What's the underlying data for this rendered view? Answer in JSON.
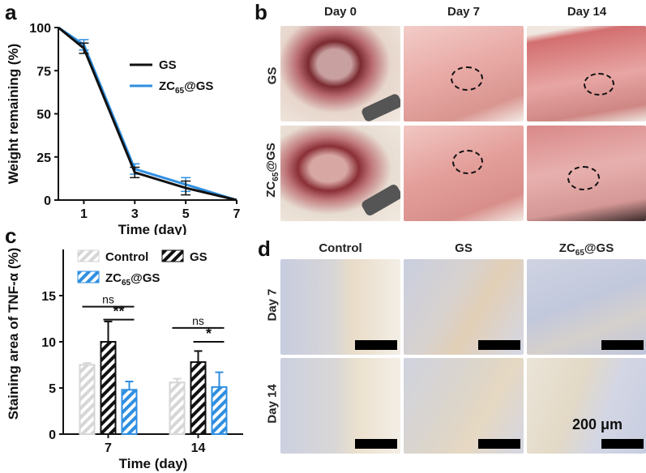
{
  "panels": {
    "a": {
      "letter": "a"
    },
    "b": {
      "letter": "b",
      "columns": [
        "Day 0",
        "Day 7",
        "Day 14"
      ],
      "rows": [
        "GS",
        "ZC",
        "65",
        "@GS"
      ]
    },
    "c": {
      "letter": "c"
    },
    "d": {
      "letter": "d",
      "columns": [
        "Control",
        "GS",
        "ZC",
        "65",
        "@GS"
      ],
      "rows": [
        "Day 7",
        "Day 14"
      ],
      "scalebar_label": "200 μm"
    }
  },
  "chart_data": [
    {
      "type": "line",
      "panel": "a",
      "title": "",
      "xlabel": "Time (day)",
      "ylabel": "Weight remaining (%)",
      "xlim": [
        0,
        7
      ],
      "ylim": [
        0,
        100
      ],
      "xticks": [
        1,
        3,
        5,
        7
      ],
      "yticks": [
        0,
        25,
        50,
        75,
        100
      ],
      "legend": "top-right",
      "series": [
        {
          "name": "GS",
          "color": "#111111",
          "x": [
            0,
            1,
            3,
            5,
            7
          ],
          "y": [
            100,
            88,
            16,
            7,
            0
          ],
          "err": [
            0,
            3,
            3,
            4,
            0
          ]
        },
        {
          "name": "ZC65@GS",
          "name_parts": [
            "ZC",
            "65",
            "@GS"
          ],
          "color": "#2f8fe0",
          "x": [
            0,
            1,
            3,
            5,
            7
          ],
          "y": [
            100,
            90,
            18,
            9,
            0
          ],
          "err": [
            0,
            3,
            3,
            4,
            0
          ]
        }
      ]
    },
    {
      "type": "bar",
      "panel": "c",
      "title": "",
      "xlabel": "Time (day)",
      "ylabel": "Staining area of TNF-α (%)",
      "categories": [
        "7",
        "14"
      ],
      "ylim": [
        0,
        20
      ],
      "yticks": [
        0,
        5,
        10,
        15
      ],
      "legend": "top-left",
      "series": [
        {
          "name": "Control",
          "color": "#d6d6d6",
          "values": [
            7.5,
            5.6
          ],
          "err": [
            0.2,
            0.4
          ]
        },
        {
          "name": "GS",
          "color": "#111111",
          "values": [
            10.0,
            7.8
          ],
          "err": [
            2.2,
            1.2
          ]
        },
        {
          "name": "ZC65@GS",
          "name_parts": [
            "ZC",
            "65",
            "@GS"
          ],
          "color": "#2f8fe0",
          "values": [
            4.8,
            5.1
          ],
          "err": [
            0.9,
            1.6
          ]
        }
      ],
      "annotations": [
        {
          "category": "7",
          "from": "Control",
          "to": "ZC65@GS",
          "text": "ns",
          "y": 13.8
        },
        {
          "category": "7",
          "from": "GS",
          "to": "ZC65@GS",
          "text": "**",
          "y": 12.4
        },
        {
          "category": "14",
          "from": "Control",
          "to": "ZC65@GS",
          "text": "ns",
          "y": 11.5
        },
        {
          "category": "14",
          "from": "GS",
          "to": "ZC65@GS",
          "text": "*",
          "y": 10.0
        }
      ]
    }
  ]
}
